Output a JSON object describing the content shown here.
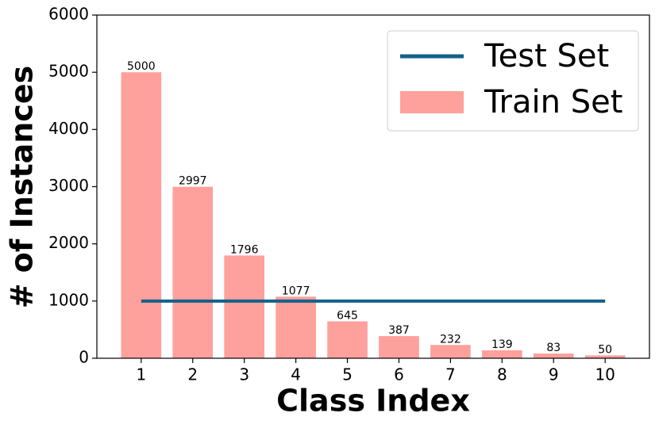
{
  "chart_data": {
    "type": "bar",
    "xlabel": "Class Index",
    "ylabel": "# of Instances",
    "categories": [
      "1",
      "2",
      "3",
      "4",
      "5",
      "6",
      "7",
      "8",
      "9",
      "10"
    ],
    "series": [
      {
        "name": "Test Set",
        "type": "line",
        "color": "#12618b",
        "values": [
          1000,
          1000,
          1000,
          1000,
          1000,
          1000,
          1000,
          1000,
          1000,
          1000
        ]
      },
      {
        "name": "Train Set",
        "type": "bar",
        "color": "#fea09c",
        "values": [
          5000,
          2997,
          1796,
          1077,
          645,
          387,
          232,
          139,
          83,
          50
        ]
      }
    ],
    "ylim": [
      0,
      6000
    ],
    "yticks": [
      0,
      1000,
      2000,
      3000,
      4000,
      5000,
      6000
    ],
    "legend": "upper right"
  }
}
